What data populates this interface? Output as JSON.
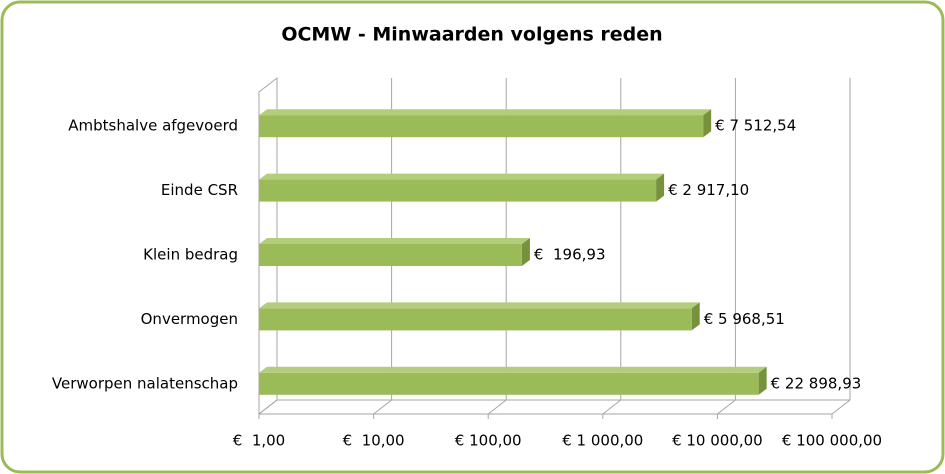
{
  "chart_data": {
    "type": "bar",
    "orientation": "horizontal",
    "title": "OCMW - Minwaarden volgens reden",
    "categories": [
      "Ambtshalve afgevoerd",
      "Einde CSR",
      "Klein bedrag",
      "Onvermogen",
      "Verworpen nalatenschap"
    ],
    "values": [
      7512.54,
      2917.1,
      196.93,
      5968.51,
      22898.93
    ],
    "value_labels": [
      "€ 7 512,54",
      "€ 2 917,10",
      "€  196,93",
      "€ 5 968,51",
      "€ 22 898,93"
    ],
    "color": "#9bbb59",
    "xscale": "log",
    "xlim": [
      1,
      100000
    ],
    "xticks": [
      {
        "value": 1,
        "label": "€  1,00"
      },
      {
        "value": 10,
        "label": "€  10,00"
      },
      {
        "value": 100,
        "label": "€ 100,00"
      },
      {
        "value": 1000,
        "label": "€ 1 000,00"
      },
      {
        "value": 10000,
        "label": "€ 10 000,00"
      },
      {
        "value": 100000,
        "label": "€ 100 000,00"
      }
    ],
    "grid": true
  }
}
